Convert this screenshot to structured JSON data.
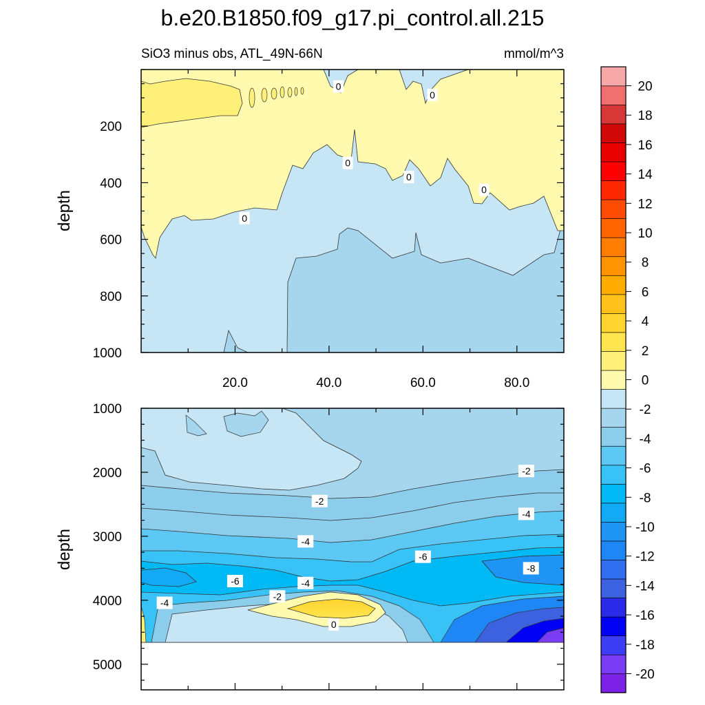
{
  "title": "b.e20.B1850.f09_g17.pi_control.all.215",
  "subtitle_left": "SiO3 minus obs, ATL_49N-66N",
  "subtitle_right": "mmol/m^3",
  "colors": {
    "levels": [
      "#7b22e6",
      "#7b3cf5",
      "#3d3df5",
      "#0000f5",
      "#2a2ae8",
      "#3d62e0",
      "#2f6ff0",
      "#1f87f5",
      "#1e95f5",
      "#12aaf5",
      "#00b9f5",
      "#38c2f5",
      "#5cc8f3",
      "#8ccdec",
      "#a6d5ee",
      "#c6e5f5",
      "#fffaae",
      "#fff07a",
      "#ffe54f",
      "#ffd42e",
      "#ffc11a",
      "#ffac00",
      "#ff9400",
      "#ff7d00",
      "#ff6600",
      "#ff4c00",
      "#ff2800",
      "#ff0000",
      "#e80000",
      "#d00808",
      "#d63838",
      "#f07070",
      "#f7a8a8"
    ]
  },
  "chart_data": [
    {
      "type": "contour",
      "panel": "upper",
      "ylabel": "depth",
      "xlim": [
        0,
        90
      ],
      "ylim": [
        1000,
        0
      ],
      "xticks": [
        "20.0",
        "40.0",
        "60.0",
        "80.0"
      ],
      "yticks": [
        "200",
        "400",
        "600",
        "800",
        "1000"
      ],
      "contour_labels": [
        {
          "text": "0",
          "x": 42,
          "y": 60
        },
        {
          "text": "0",
          "x": 62,
          "y": 90
        },
        {
          "text": "0",
          "x": 44,
          "y": 330
        },
        {
          "text": "0",
          "x": 57,
          "y": 380
        },
        {
          "text": "0",
          "x": 73,
          "y": 425
        },
        {
          "text": "0",
          "x": 22,
          "y": 525
        }
      ]
    },
    {
      "type": "contour",
      "panel": "lower",
      "ylabel": "depth",
      "xlim": [
        0,
        90
      ],
      "ylim": [
        5400,
        1000
      ],
      "yticks": [
        "1000",
        "2000",
        "3000",
        "4000",
        "5000"
      ],
      "contour_labels": [
        {
          "text": "-2",
          "x": 82,
          "y": 1980
        },
        {
          "text": "-2",
          "x": 38,
          "y": 2450
        },
        {
          "text": "-4",
          "x": 82,
          "y": 2650
        },
        {
          "text": "-4",
          "x": 35,
          "y": 3080
        },
        {
          "text": "-6",
          "x": 60,
          "y": 3320
        },
        {
          "text": "-8",
          "x": 83,
          "y": 3500
        },
        {
          "text": "-6",
          "x": 20,
          "y": 3700
        },
        {
          "text": "-4",
          "x": 35,
          "y": 3730
        },
        {
          "text": "-2",
          "x": 29,
          "y": 3940
        },
        {
          "text": "-4",
          "x": 5,
          "y": 4040
        },
        {
          "text": "0",
          "x": 41,
          "y": 4380
        }
      ]
    },
    {
      "type": "colorbar",
      "tick_labels": [
        "20",
        "18",
        "16",
        "14",
        "12",
        "10",
        "8",
        "6",
        "4",
        "2",
        "0",
        "-2",
        "-4",
        "-6",
        "-8",
        "-10",
        "-12",
        "-14",
        "-16",
        "-18",
        "-20"
      ]
    }
  ]
}
